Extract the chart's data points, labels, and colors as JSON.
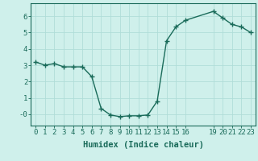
{
  "x": [
    0,
    1,
    2,
    3,
    4,
    5,
    6,
    7,
    8,
    9,
    10,
    11,
    12,
    13,
    14,
    15,
    16,
    19,
    20,
    21,
    22,
    23
  ],
  "y": [
    3.2,
    3.0,
    3.1,
    2.9,
    2.9,
    2.9,
    2.3,
    0.35,
    -0.05,
    -0.15,
    -0.1,
    -0.1,
    -0.05,
    0.8,
    4.5,
    5.35,
    5.75,
    6.3,
    5.9,
    5.5,
    5.35,
    5.0
  ],
  "line_color": "#1a6b5a",
  "marker": "+",
  "marker_size": 4,
  "bg_color": "#cff0eb",
  "grid_color": "#b0ddd8",
  "xlabel": "Humidex (Indice chaleur)",
  "xlim": [
    -0.5,
    23.5
  ],
  "ylim": [
    -0.7,
    6.8
  ],
  "xticks": [
    0,
    1,
    2,
    3,
    4,
    5,
    6,
    7,
    8,
    9,
    10,
    11,
    12,
    13,
    14,
    15,
    16,
    19,
    20,
    21,
    22,
    23
  ],
  "yticks": [
    0,
    1,
    2,
    3,
    4,
    5,
    6
  ],
  "ytick_labels": [
    "-0",
    "1",
    "2",
    "3",
    "4",
    "5",
    "6"
  ],
  "tick_color": "#1a6b5a",
  "axis_color": "#1a6b5a",
  "fontsize_label": 7.5,
  "fontsize_tick": 6.5,
  "linewidth": 1.0,
  "markeredgewidth": 1.0
}
